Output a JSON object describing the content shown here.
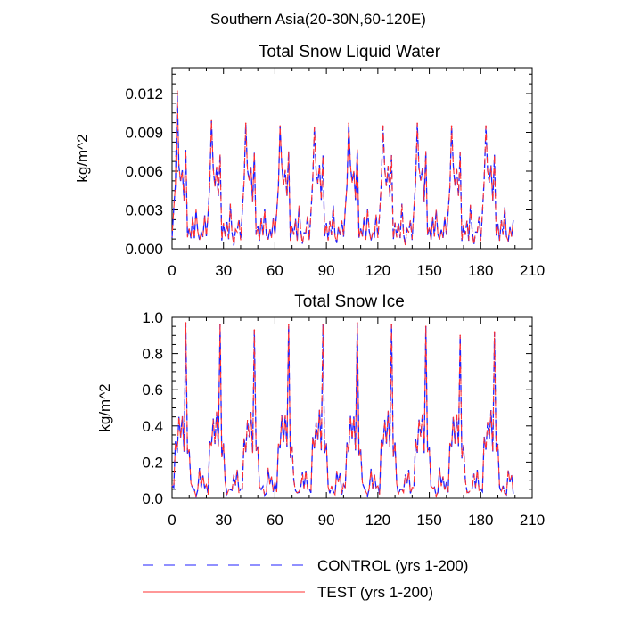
{
  "page_title": "Southern Asia(20-30N,60-120E)",
  "chart_data": [
    {
      "type": "line",
      "title": "Total Snow Liquid Water",
      "xlabel": "",
      "ylabel": "kg/m^2",
      "xlim": [
        0,
        210
      ],
      "ylim": [
        0,
        0.014
      ],
      "xticks": [
        0,
        30,
        60,
        90,
        120,
        150,
        180,
        210
      ],
      "xtick_labels": [
        "0",
        "30",
        "60",
        "90",
        "120",
        "150",
        "180",
        "210"
      ],
      "yticks": [
        0,
        0.003,
        0.006,
        0.009,
        0.012
      ],
      "ytick_labels": [
        "0.000",
        "0.003",
        "0.006",
        "0.009",
        "0.012"
      ],
      "cycle_peaks": [
        {
          "year": 3,
          "value": 0.0122
        },
        {
          "year": 23,
          "value": 0.0099
        },
        {
          "year": 43,
          "value": 0.0097
        },
        {
          "year": 63,
          "value": 0.0095
        },
        {
          "year": 83,
          "value": 0.0094
        },
        {
          "year": 103,
          "value": 0.0097
        },
        {
          "year": 123,
          "value": 0.0095
        },
        {
          "year": 143,
          "value": 0.0097
        },
        {
          "year": 163,
          "value": 0.0095
        },
        {
          "year": 183,
          "value": 0.0095
        }
      ],
      "series": [
        {
          "name": "CONTROL (yrs 1-200)",
          "color": "#2020ff",
          "style": "dashed"
        },
        {
          "name": "TEST (yrs 1-200)",
          "color": "#ff3030",
          "style": "solid"
        }
      ]
    },
    {
      "type": "line",
      "title": "Total Snow Ice",
      "xlabel": "",
      "ylabel": "kg/m^2",
      "xlim": [
        0,
        210
      ],
      "ylim": [
        0,
        1.0
      ],
      "xticks": [
        0,
        30,
        60,
        90,
        120,
        150,
        180,
        210
      ],
      "xtick_labels": [
        "0",
        "30",
        "60",
        "90",
        "120",
        "150",
        "180",
        "210"
      ],
      "yticks": [
        0,
        0.2,
        0.4,
        0.6,
        0.8,
        1.0
      ],
      "ytick_labels": [
        "0.0",
        "0.2",
        "0.4",
        "0.6",
        "0.8",
        "1.0"
      ],
      "cycle_peaks": [
        {
          "year": 8,
          "value": 0.97
        },
        {
          "year": 28,
          "value": 0.96
        },
        {
          "year": 48,
          "value": 0.93
        },
        {
          "year": 68,
          "value": 0.96
        },
        {
          "year": 88,
          "value": 0.96
        },
        {
          "year": 108,
          "value": 0.97
        },
        {
          "year": 128,
          "value": 0.96
        },
        {
          "year": 148,
          "value": 0.95
        },
        {
          "year": 168,
          "value": 0.9
        },
        {
          "year": 188,
          "value": 0.92
        }
      ],
      "series": [
        {
          "name": "CONTROL (yrs 1-200)",
          "color": "#2020ff",
          "style": "dashed"
        },
        {
          "name": "TEST (yrs 1-200)",
          "color": "#ff3030",
          "style": "solid"
        }
      ]
    }
  ],
  "legend": [
    {
      "label": "CONTROL (yrs 1-200)",
      "color": "#2020ff",
      "style": "dashed"
    },
    {
      "label": "TEST (yrs 1-200)",
      "color": "#ff3030",
      "style": "solid"
    }
  ]
}
